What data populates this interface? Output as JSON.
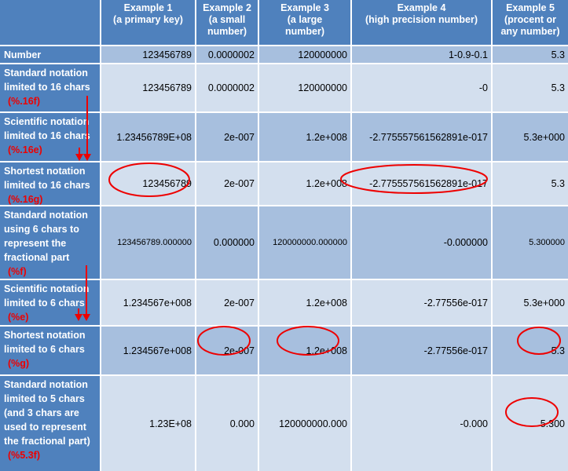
{
  "headers": [
    "",
    "Example 1\n(a primary key)",
    "Example 2\n(a small\nnumber)",
    "Example 3\n(a large\nnumber)",
    "Example 4\n(high precision number)",
    "Example 5\n(procent or\nany number)"
  ],
  "rows": [
    {
      "label": "Number",
      "format": "",
      "values": [
        "123456789",
        "0.0000002",
        "120000000",
        "1-0.9-0.1",
        "5.3"
      ]
    },
    {
      "label": "Standard notation limited to 16 chars",
      "format": "(%.16f)",
      "values": [
        "123456789",
        "0.0000002",
        "120000000",
        "-0",
        "5.3"
      ]
    },
    {
      "label": "Scientific notation limited to 16 chars",
      "format": "(%.16e)",
      "values": [
        "1.23456789E+08",
        "2e-007",
        "1.2e+008",
        "-2.775557561562891e-017",
        "5.3e+000"
      ]
    },
    {
      "label": "Shortest notation limited to 16 chars",
      "format": "(%.16g)",
      "values": [
        "123456789",
        "2e-007",
        "1.2e+008",
        "-2.775557561562891e-017",
        "5.3"
      ]
    },
    {
      "label": "Standard notation using 6 chars to represent the fractional part",
      "format": "(%f)",
      "values": [
        "123456789.000000",
        "0.000000",
        "120000000.000000",
        "-0.000000",
        "5.300000"
      ]
    },
    {
      "label": "Scientific notation limited to 6 chars",
      "format": "(%e)",
      "values": [
        "1.234567e+008",
        "2e-007",
        "1.2e+008",
        "-2.77556e-017",
        "5.3e+000"
      ]
    },
    {
      "label": "Shortest notation limited to 6 chars",
      "format": "(%g)",
      "values": [
        "1.234567e+008",
        "2e-007",
        "1.2e+008",
        "-2.77556e-017",
        "5.3"
      ]
    },
    {
      "label": "Standard notation limited to 5 chars (and 3 chars are used to represent the fractional part)",
      "format": "(%5.3f)",
      "values": [
        "1.23E+08",
        "0.000",
        "120000000.000",
        "-0.000",
        "5.300"
      ]
    }
  ],
  "colors": {
    "header": "#4f81bd",
    "dark_cell": "#a7bfde",
    "light_cell": "#d3dfee",
    "annotation": "#e00000"
  }
}
